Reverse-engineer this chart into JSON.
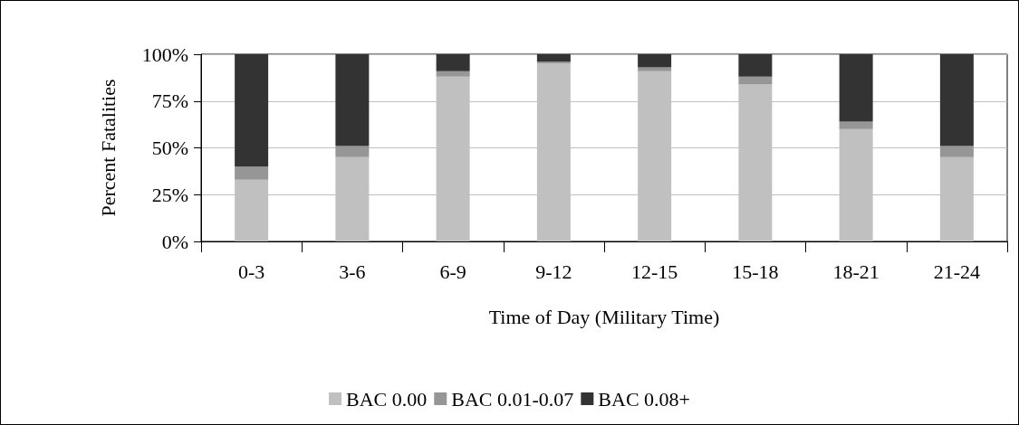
{
  "chart_data": {
    "type": "bar",
    "stacked": true,
    "xlabel": "Time of Day (Military Time)",
    "ylabel": "Percent Fatalities",
    "categories": [
      "0-3",
      "3-6",
      "6-9",
      "9-12",
      "12-15",
      "15-18",
      "18-21",
      "21-24"
    ],
    "series": [
      {
        "name": "BAC 0.00",
        "color": "#c0c0c0",
        "values": [
          33,
          45,
          88,
          95,
          91,
          84,
          60,
          45
        ]
      },
      {
        "name": "BAC 0.01-0.07",
        "color": "#969696",
        "values": [
          7,
          6,
          3,
          1,
          2,
          4,
          4,
          6
        ]
      },
      {
        "name": "BAC 0.08+",
        "color": "#333333",
        "values": [
          60,
          49,
          9,
          4,
          7,
          12,
          36,
          49
        ]
      }
    ],
    "ylim": [
      0,
      100
    ],
    "yticks": [
      {
        "value": 0,
        "label": "0%"
      },
      {
        "value": 25,
        "label": "25%"
      },
      {
        "value": 50,
        "label": "50%"
      },
      {
        "value": 75,
        "label": "75%"
      },
      {
        "value": 100,
        "label": "100%"
      }
    ],
    "grid": "y",
    "legend": "bottom"
  }
}
